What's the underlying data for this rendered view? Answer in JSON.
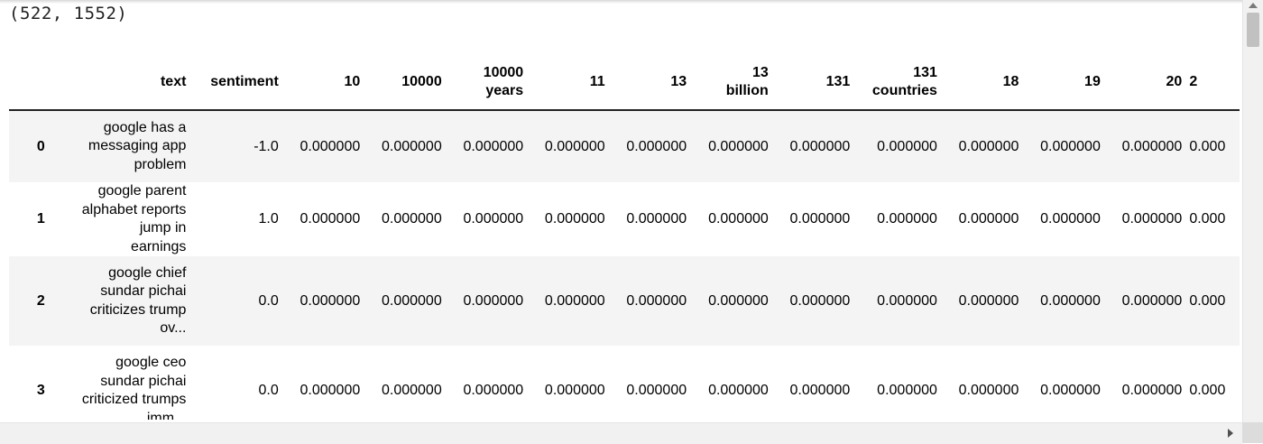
{
  "shape_output": "(522, 1552)",
  "table": {
    "columns": [
      "text",
      "sentiment",
      "10",
      "10000",
      "10000 years",
      "11",
      "13",
      "13 billion",
      "131",
      "131 countries",
      "18",
      "19",
      "20",
      "2"
    ],
    "rows": [
      {
        "index": "0",
        "text": "google has a messaging app problem",
        "sentiment": "-1.0",
        "values": [
          "0.000000",
          "0.000000",
          "0.000000",
          "0.000000",
          "0.000000",
          "0.000000",
          "0.000000",
          "0.000000",
          "0.000000",
          "0.000000",
          "0.000000",
          "0.000"
        ]
      },
      {
        "index": "1",
        "text": "google parent alphabet reports jump in earnings",
        "sentiment": "1.0",
        "values": [
          "0.000000",
          "0.000000",
          "0.000000",
          "0.000000",
          "0.000000",
          "0.000000",
          "0.000000",
          "0.000000",
          "0.000000",
          "0.000000",
          "0.000000",
          "0.000"
        ]
      },
      {
        "index": "2",
        "text": "google chief sundar pichai criticizes trump ov...",
        "sentiment": "0.0",
        "values": [
          "0.000000",
          "0.000000",
          "0.000000",
          "0.000000",
          "0.000000",
          "0.000000",
          "0.000000",
          "0.000000",
          "0.000000",
          "0.000000",
          "0.000000",
          "0.000"
        ]
      },
      {
        "index": "3",
        "text": "google ceo sundar pichai criticized trumps imm...",
        "sentiment": "0.0",
        "values": [
          "0.000000",
          "0.000000",
          "0.000000",
          "0.000000",
          "0.000000",
          "0.000000",
          "0.000000",
          "0.000000",
          "0.000000",
          "0.000000",
          "0.000000",
          "0.000"
        ]
      }
    ]
  },
  "icons": {
    "scroll_up": "triangle-up-icon",
    "scroll_right": "triangle-right-icon"
  },
  "colors": {
    "odd_row": "#f4f4f4",
    "even_row": "#ffffff",
    "header_rule": "#222222"
  }
}
